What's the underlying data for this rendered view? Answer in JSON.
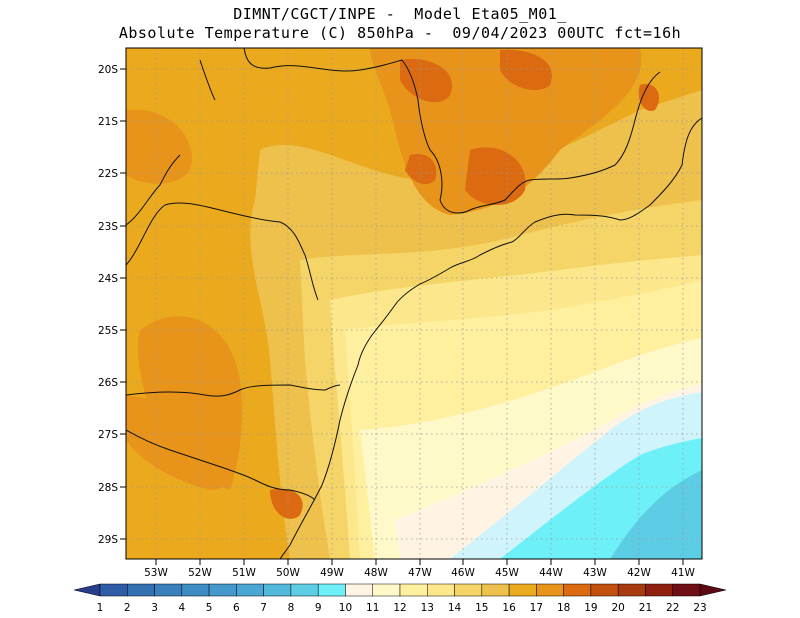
{
  "title_line1": "DIMNT/CGCT/INPE -  Model Eta05_M01_",
  "title_line2": "Absolute Temperature (C) 850hPa -  09/04/2023 00UTC fct=16h",
  "map": {
    "lat_labels": [
      "20S",
      "21S",
      "22S",
      "23S",
      "24S",
      "25S",
      "26S",
      "27S",
      "28S",
      "29S"
    ],
    "lon_labels": [
      "53W",
      "52W",
      "51W",
      "50W",
      "49W",
      "48W",
      "47W",
      "46W",
      "45W",
      "44W",
      "43W",
      "42W",
      "41W"
    ],
    "grid": true
  },
  "colorbar": {
    "labels": [
      "1",
      "2",
      "3",
      "4",
      "5",
      "6",
      "7",
      "8",
      "9",
      "10",
      "11",
      "12",
      "13",
      "14",
      "15",
      "16",
      "17",
      "18",
      "19",
      "20",
      "21",
      "22",
      "23"
    ],
    "colors": [
      "#2a4a9e",
      "#2f5ca8",
      "#3270b2",
      "#3a80bc",
      "#3e8cc4",
      "#4599cc",
      "#4aa7d4",
      "#52b8dc",
      "#5ccde4",
      "#6ef0f8",
      "#fff4e3",
      "#fff8c8",
      "#fff0a0",
      "#fce78c",
      "#f6d568",
      "#eec04c",
      "#eba91e",
      "#e8931a",
      "#db6a11",
      "#c3500f",
      "#a83a10",
      "#8f2010",
      "#6f0e14"
    ],
    "left_arrow_color": "#283e8c",
    "right_arrow_color": "#5a0a10"
  }
}
